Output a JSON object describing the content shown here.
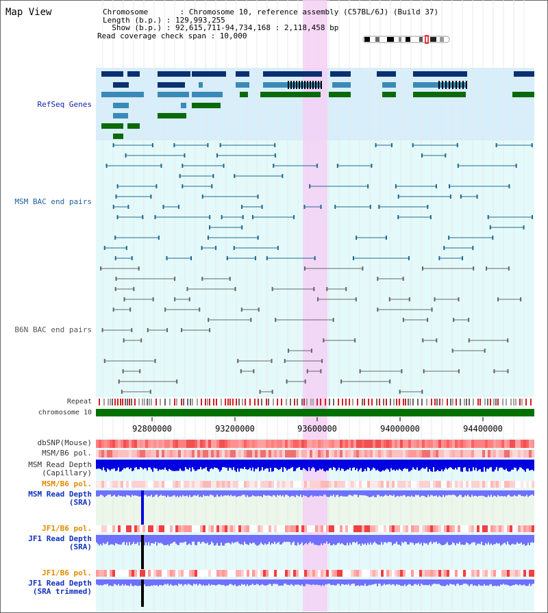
{
  "title": "Map View",
  "info": {
    "chromosome": "Chromosome       : Chromosome 10, reference assembly (C57BL/6J) (Build 37)",
    "length": "Length (b.p.) : 129,993,255",
    "show": "  Show (b.p.) : 92,615,711-94,734,168 : 2,118,458 bp",
    "coverage": "Read coverage check span : 10,000"
  },
  "tracks": {
    "refseq": "RefSeq Genes",
    "msm_bac": "MSM BAC end pairs",
    "b6n_bac": "B6N BAC end pairs",
    "repeat": "Repeat",
    "chromosome": "chromosome 10",
    "dbsnp": "dbSNP(Mouse)",
    "msm_pol": "MSM/B6 pol.",
    "msm_depth_cap_1": "MSM Read Depth",
    "msm_depth_cap_2": "(Capillary)",
    "msm_pol2": "MSM/B6 pol.",
    "msm_depth_sra_1": "MSM Read Depth",
    "msm_depth_sra_2": "(SRA)",
    "jf1_pol": "JF1/B6 pol.",
    "jf1_depth_sra_1": "JF1 Read Depth",
    "jf1_depth_sra_2": "(SRA)",
    "jf1_pol2": "JF1/B6 pol.",
    "jf1_depth_trim_1": "JF1 Read Depth",
    "jf1_depth_trim_2": "(SRA trimmed)"
  },
  "axis": {
    "ticks": [
      "92800000",
      "93200000",
      "93600000",
      "94000000",
      "94400000"
    ]
  },
  "colors": {
    "refseq_bg": "#d8eefa",
    "bac_bg": "#e4fafa",
    "highlight": "#f5d0f5",
    "gene_dark": "#0a3070",
    "gene_mid": "#3a8ab8",
    "gene_green": "#0a6a0a",
    "chrom_green": "#007000",
    "depth_blue": "#0000e0",
    "depth_light": "#7070ff"
  }
}
